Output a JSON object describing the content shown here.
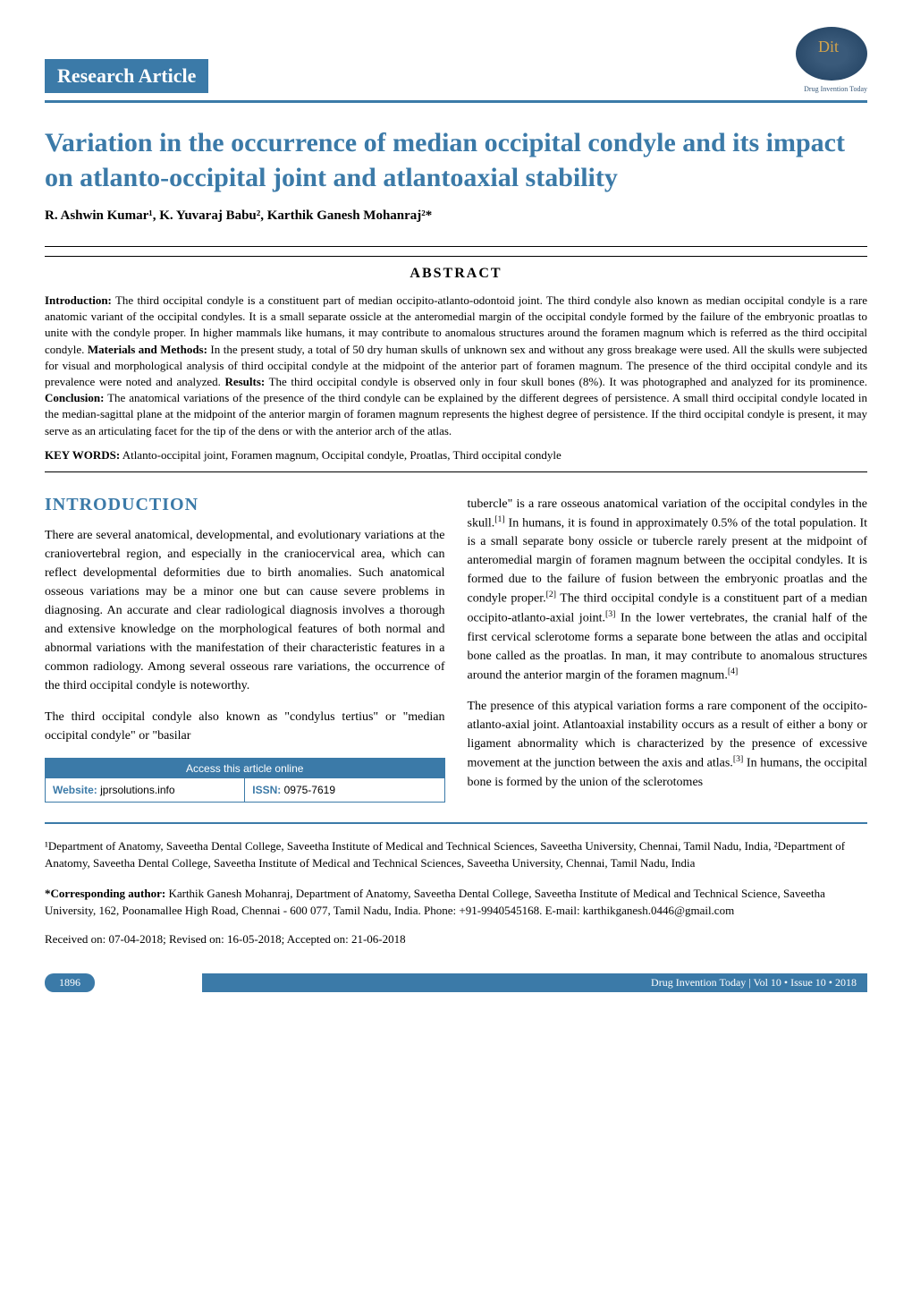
{
  "header": {
    "article_type": "Research Article",
    "logo_text": "Dit",
    "logo_sub": "Drug Invention Today"
  },
  "title": "Variation in the occurrence of median occipital condyle and its impact on atlanto-occipital joint and atlantoaxial stability",
  "authors": "R. Ashwin Kumar¹, K. Yuvaraj Babu², Karthik Ganesh Mohanraj²*",
  "abstract": {
    "heading": "ABSTRACT",
    "text": "Introduction: The third occipital condyle is a constituent part of median occipito-atlanto-odontoid joint. The third condyle also known as median occipital condyle is a rare anatomic variant of the occipital condyles. It is a small separate ossicle at the anteromedial margin of the occipital condyle formed by the failure of the embryonic proatlas to unite with the condyle proper. In higher mammals like humans, it may contribute to anomalous structures around the foramen magnum which is referred as the third occipital condyle. Materials and Methods: In the present study, a total of 50 dry human skulls of unknown sex and without any gross breakage were used. All the skulls were subjected for visual and morphological analysis of third occipital condyle at the midpoint of the anterior part of foramen magnum. The presence of the third occipital condyle and its prevalence were noted and analyzed. Results: The third occipital condyle is observed only in four skull bones (8%). It was photographed and analyzed for its prominence. Conclusion: The anatomical variations of the presence of the third condyle can be explained by the different degrees of persistence. A small third occipital condyle located in the median-sagittal plane at the midpoint of the anterior margin of foramen magnum represents the highest degree of persistence. If the third occipital condyle is present, it may serve as an articulating facet for the tip of the dens or with the anterior arch of the atlas.",
    "keywords": "KEY WORDS: Atlanto-occipital joint, Foramen magnum, Occipital condyle, Proatlas, Third occipital condyle"
  },
  "intro": {
    "heading": "INTRODUCTION",
    "p1": "There are several anatomical, developmental, and evolutionary variations at the craniovertebral region, and especially in the craniocervical area, which can reflect developmental deformities due to birth anomalies. Such anatomical osseous variations may be a minor one but can cause severe problems in diagnosing. An accurate and clear radiological diagnosis involves a thorough and extensive knowledge on the morphological features of both normal and abnormal variations with the manifestation of their characteristic features in a common radiology. Among several osseous rare variations, the occurrence of the third occipital condyle is noteworthy.",
    "p2": "The third occipital condyle also known as \"condylus tertius\" or \"median occipital condyle\" or \"basilar",
    "p3": "tubercle\" is a rare osseous anatomical variation of the occipital condyles in the skull.[1] In humans, it is found in approximately 0.5% of the total population. It is a small separate bony ossicle or tubercle rarely present at the midpoint of anteromedial margin of foramen magnum between the occipital condyles. It is formed due to the failure of fusion between the embryonic proatlas and the condyle proper.[2] The third occipital condyle is a constituent part of a median occipito-atlanto-axial joint.[3] In the lower vertebrates, the cranial half of the first cervical sclerotome forms a separate bone between the atlas and occipital bone called as the proatlas. In man, it may contribute to anomalous structures around the anterior margin of the foramen magnum.[4]",
    "p4": "The presence of this atypical variation forms a rare component of the occipito-atlanto-axial joint. Atlantoaxial instability occurs as a result of either a bony or ligament abnormality which is characterized by the presence of excessive movement at the junction between the axis and atlas.[3] In humans, the occipital bone is formed by the union of the sclerotomes"
  },
  "access": {
    "header": "Access this article online",
    "website_label": "Website:",
    "website_value": " jprsolutions.info",
    "issn_label": "ISSN:",
    "issn_value": " 0975-7619"
  },
  "affiliations": "¹Department of Anatomy, Saveetha Dental College, Saveetha Institute of Medical and Technical Sciences, Saveetha University, Chennai, Tamil Nadu, India, ²Department of Anatomy, Saveetha Dental College, Saveetha Institute of Medical and Technical Sciences, Saveetha University, Chennai, Tamil Nadu, India",
  "corresponding": "*Corresponding author: Karthik Ganesh Mohanraj, Department of Anatomy, Saveetha Dental College, Saveetha Institute of Medical and Technical Science, Saveetha University, 162, Poonamallee High Road, Chennai - 600 077, Tamil Nadu, India. Phone: +91-9940545168. E-mail: karthikganesh.0446@gmail.com",
  "dates": "Received on: 07-04-2018; Revised on: 16-05-2018; Accepted on: 21-06-2018",
  "footer": {
    "page": "1896",
    "journal": "Drug Invention Today | Vol 10 • Issue 10 • 2018"
  },
  "colors": {
    "primary": "#3b7aa8",
    "gold": "#d4a44a"
  }
}
